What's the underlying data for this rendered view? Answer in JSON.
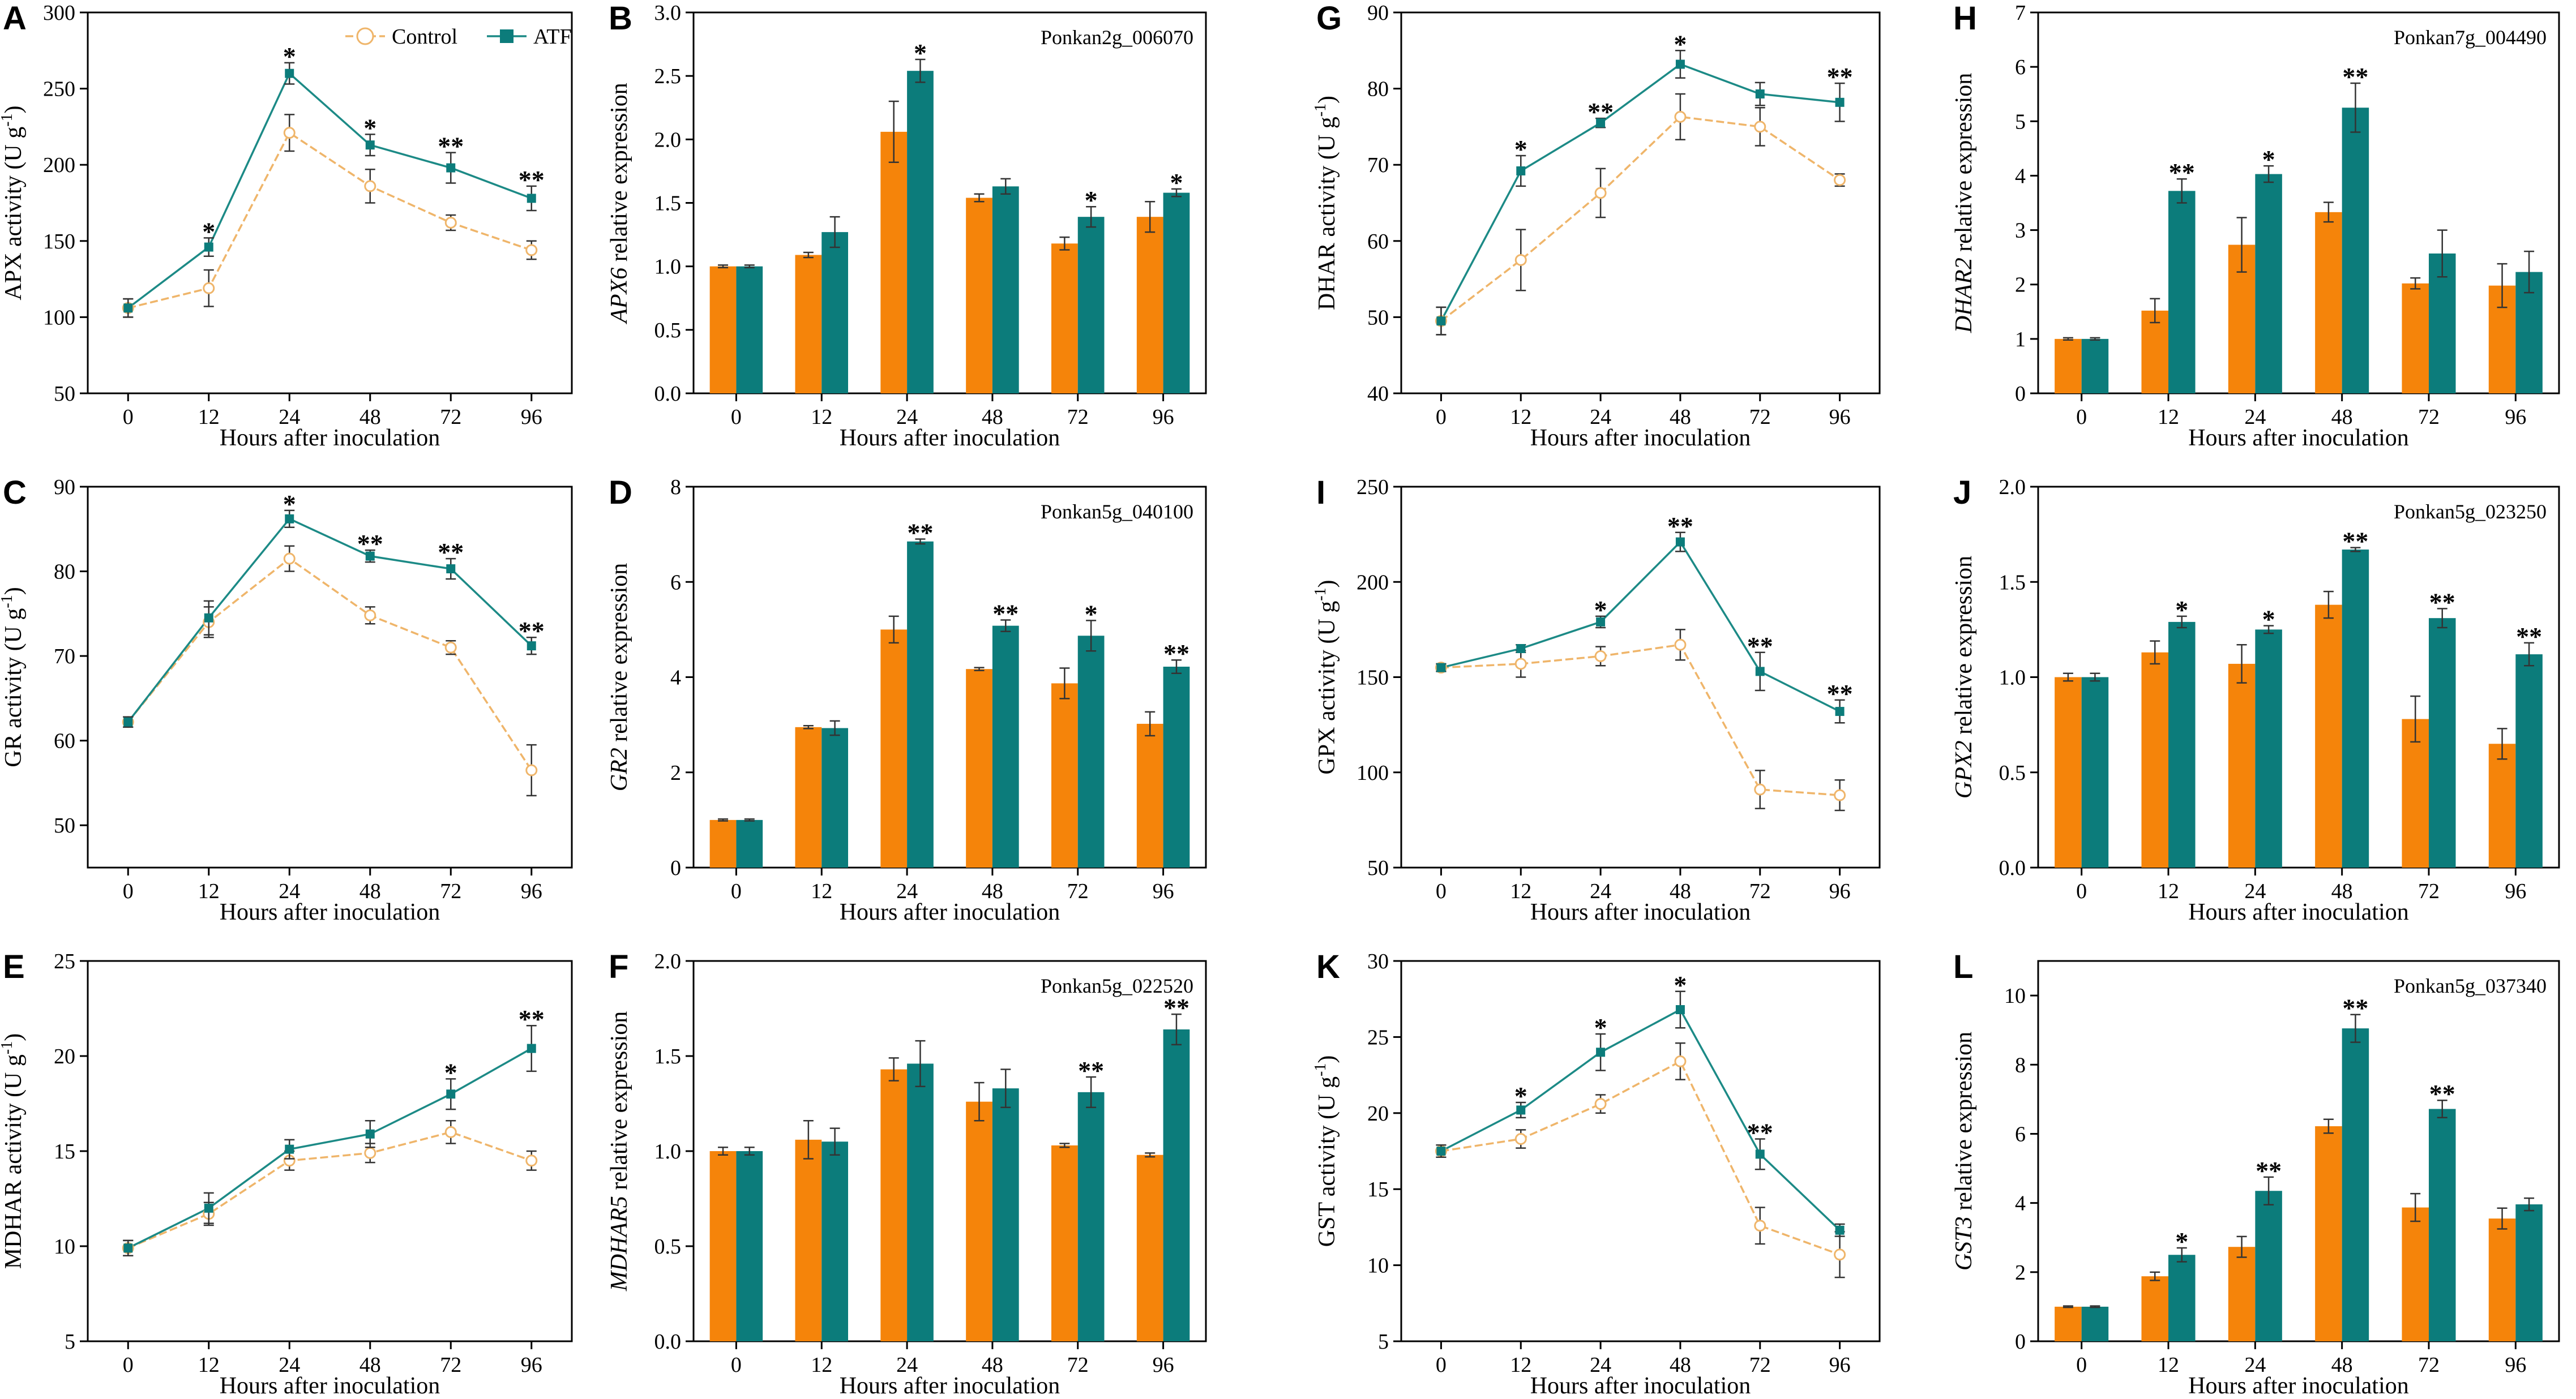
{
  "colors": {
    "control": "#F5840A",
    "atf": "#0C7C7B",
    "control_line": "#EFB56A",
    "atf_line": "#1C8A86",
    "axis": "#000000",
    "error": "#333333"
  },
  "legend": {
    "control": "Control",
    "atf": "ATF"
  },
  "chart_data": [
    {
      "panel": "A",
      "type": "line",
      "title": "",
      "ylabel": "APX activity (U g-1)",
      "ylabel_main": "APX activity (U g",
      "ylabel_sup": "-1",
      "ylabel_close": ")",
      "xlabel": "Hours after inoculation",
      "categories": [
        "0",
        "12",
        "24",
        "48",
        "72",
        "96"
      ],
      "ylim": [
        50,
        300
      ],
      "yticks": [
        "50",
        "100",
        "150",
        "200",
        "250",
        "300"
      ],
      "series": [
        {
          "name": "Control",
          "values": [
            106,
            119,
            221,
            186,
            162,
            144
          ],
          "errors": [
            6,
            12,
            12,
            11,
            5,
            6
          ]
        },
        {
          "name": "ATF",
          "values": [
            106,
            146,
            260,
            213,
            198,
            178
          ],
          "errors": [
            6,
            6,
            7,
            7,
            10,
            8
          ]
        }
      ],
      "significance": [
        "",
        "*",
        "*",
        "*",
        "**",
        "**"
      ],
      "legend": true
    },
    {
      "panel": "B",
      "type": "bar",
      "title": "Ponkan2g_006070",
      "ylabel": "APX6 relative expression",
      "ylabel_gene": "APX6",
      "ylabel_rest": " relative expression",
      "xlabel": "Hours after inoculation",
      "categories": [
        "0",
        "12",
        "24",
        "48",
        "72",
        "96"
      ],
      "ylim": [
        0,
        3.0
      ],
      "yticks": [
        "0.0",
        "0.5",
        "1.0",
        "1.5",
        "2.0",
        "2.5",
        "3.0"
      ],
      "series": [
        {
          "name": "Control",
          "values": [
            1.0,
            1.09,
            2.06,
            1.54,
            1.18,
            1.39
          ],
          "errors": [
            0.01,
            0.02,
            0.24,
            0.03,
            0.05,
            0.12
          ]
        },
        {
          "name": "ATF",
          "values": [
            1.0,
            1.27,
            2.54,
            1.63,
            1.39,
            1.58
          ],
          "errors": [
            0.01,
            0.12,
            0.09,
            0.06,
            0.08,
            0.03
          ]
        }
      ],
      "significance": [
        "",
        "",
        "*",
        "",
        "*",
        "*"
      ]
    },
    {
      "panel": "C",
      "type": "line",
      "title": "",
      "ylabel": "GR activity (U g-1)",
      "ylabel_main": "GR activity (U g",
      "ylabel_sup": "-1",
      "ylabel_close": ")",
      "xlabel": "Hours after inoculation",
      "categories": [
        "0",
        "12",
        "24",
        "48",
        "72",
        "96"
      ],
      "ylim": [
        45,
        90
      ],
      "yticks": [
        "50",
        "60",
        "70",
        "80",
        "90"
      ],
      "series": [
        {
          "name": "Control",
          "values": [
            62.2,
            74.0,
            81.5,
            74.8,
            71.0,
            56.5
          ],
          "errors": [
            0.6,
            1.8,
            1.5,
            1.0,
            0.8,
            3.0
          ]
        },
        {
          "name": "ATF",
          "values": [
            62.2,
            74.5,
            86.2,
            81.8,
            80.3,
            71.2
          ],
          "errors": [
            0.6,
            2.0,
            1.0,
            0.7,
            1.2,
            1.0
          ]
        }
      ],
      "significance": [
        "",
        "",
        "*",
        "**",
        "**",
        "**"
      ]
    },
    {
      "panel": "D",
      "type": "bar",
      "title": "Ponkan5g_040100",
      "ylabel": "GR2 relative expression",
      "ylabel_gene": "GR2",
      "ylabel_rest": " relative expression",
      "xlabel": "Hours after inoculation",
      "categories": [
        "0",
        "12",
        "24",
        "48",
        "72",
        "96"
      ],
      "ylim": [
        0,
        8
      ],
      "yticks": [
        "0",
        "2",
        "4",
        "6",
        "8"
      ],
      "series": [
        {
          "name": "Control",
          "values": [
            1.0,
            2.95,
            5.0,
            4.17,
            3.87,
            3.02
          ],
          "errors": [
            0.02,
            0.03,
            0.28,
            0.03,
            0.32,
            0.25
          ]
        },
        {
          "name": "ATF",
          "values": [
            1.0,
            2.93,
            6.85,
            5.08,
            4.87,
            4.22
          ],
          "errors": [
            0.02,
            0.15,
            0.05,
            0.12,
            0.32,
            0.14
          ]
        }
      ],
      "significance": [
        "",
        "",
        "**",
        "**",
        "*",
        "**"
      ]
    },
    {
      "panel": "E",
      "type": "line",
      "title": "",
      "ylabel": "MDHAR activity (U g-1)",
      "ylabel_main": "MDHAR activity (U g",
      "ylabel_sup": "-1",
      "ylabel_close": ")",
      "xlabel": "Hours after inoculation",
      "categories": [
        "0",
        "12",
        "24",
        "48",
        "72",
        "96"
      ],
      "ylim": [
        5,
        25
      ],
      "yticks": [
        "5",
        "10",
        "15",
        "20",
        "25"
      ],
      "series": [
        {
          "name": "Control",
          "values": [
            9.9,
            11.7,
            14.5,
            14.9,
            16.0,
            14.5
          ],
          "errors": [
            0.4,
            0.6,
            0.5,
            0.5,
            0.6,
            0.5
          ]
        },
        {
          "name": "ATF",
          "values": [
            9.9,
            12.0,
            15.1,
            15.9,
            18.0,
            20.4
          ],
          "errors": [
            0.4,
            0.8,
            0.5,
            0.7,
            0.8,
            1.2
          ]
        }
      ],
      "significance": [
        "",
        "",
        "",
        "",
        "*",
        "**"
      ]
    },
    {
      "panel": "F",
      "type": "bar",
      "title": "Ponkan5g_022520",
      "ylabel": "MDHAR5 relative expression",
      "ylabel_gene": "MDHAR5",
      "ylabel_rest": " relative expression",
      "xlabel": "Hours after inoculation",
      "categories": [
        "0",
        "12",
        "24",
        "48",
        "72",
        "96"
      ],
      "ylim": [
        0,
        2.0
      ],
      "yticks": [
        "0.0",
        "0.5",
        "1.0",
        "1.5",
        "2.0"
      ],
      "series": [
        {
          "name": "Control",
          "values": [
            1.0,
            1.06,
            1.43,
            1.26,
            1.03,
            0.98
          ],
          "errors": [
            0.02,
            0.1,
            0.06,
            0.1,
            0.01,
            0.01
          ]
        },
        {
          "name": "ATF",
          "values": [
            1.0,
            1.05,
            1.46,
            1.33,
            1.31,
            1.64
          ],
          "errors": [
            0.02,
            0.07,
            0.12,
            0.1,
            0.08,
            0.08
          ]
        }
      ],
      "significance": [
        "",
        "",
        "",
        "",
        "**",
        "**"
      ]
    },
    {
      "panel": "G",
      "type": "line",
      "title": "",
      "ylabel": "DHAR activity (U g-1)",
      "ylabel_main": "DHAR activity (U g",
      "ylabel_sup": "-1",
      "ylabel_close": ")",
      "xlabel": "Hours after inoculation",
      "categories": [
        "0",
        "12",
        "24",
        "48",
        "72",
        "96"
      ],
      "ylim": [
        40,
        90
      ],
      "yticks": [
        "40",
        "50",
        "60",
        "70",
        "80",
        "90"
      ],
      "series": [
        {
          "name": "Control",
          "values": [
            49.5,
            57.5,
            66.3,
            76.3,
            75.0,
            68.0
          ],
          "errors": [
            1.8,
            4.0,
            3.2,
            3.0,
            2.5,
            0.8
          ]
        },
        {
          "name": "ATF",
          "values": [
            49.5,
            69.2,
            75.5,
            83.2,
            79.3,
            78.2
          ],
          "errors": [
            1.8,
            2.0,
            0.6,
            1.8,
            1.5,
            2.5
          ]
        }
      ],
      "significance": [
        "",
        "*",
        "**",
        "*",
        "",
        "**"
      ]
    },
    {
      "panel": "H",
      "type": "bar",
      "title": "Ponkan7g_004490",
      "ylabel": "DHAR2 relative expression",
      "ylabel_gene": "DHAR2",
      "ylabel_rest": " relative expression",
      "xlabel": "Hours after inoculation",
      "categories": [
        "0",
        "12",
        "24",
        "48",
        "72",
        "96"
      ],
      "ylim": [
        0,
        7
      ],
      "yticks": [
        "0",
        "1",
        "2",
        "3",
        "4",
        "5",
        "6",
        "7"
      ],
      "series": [
        {
          "name": "Control",
          "values": [
            1.0,
            1.52,
            2.73,
            3.33,
            2.02,
            1.98
          ],
          "errors": [
            0.02,
            0.22,
            0.5,
            0.18,
            0.1,
            0.4
          ]
        },
        {
          "name": "ATF",
          "values": [
            1.0,
            3.72,
            4.03,
            5.25,
            2.57,
            2.23
          ],
          "errors": [
            0.02,
            0.22,
            0.15,
            0.45,
            0.43,
            0.38
          ]
        }
      ],
      "significance": [
        "",
        "**",
        "*",
        "**",
        "",
        ""
      ]
    },
    {
      "panel": "I",
      "type": "line",
      "title": "",
      "ylabel": "GPX activity (U g-1)",
      "ylabel_main": "GPX activity (U g",
      "ylabel_sup": "-1",
      "ylabel_close": ")",
      "xlabel": "Hours after inoculation",
      "categories": [
        "0",
        "12",
        "24",
        "48",
        "72",
        "96"
      ],
      "ylim": [
        50,
        250
      ],
      "yticks": [
        "50",
        "100",
        "150",
        "200",
        "250"
      ],
      "series": [
        {
          "name": "Control",
          "values": [
            155,
            157,
            161,
            167,
            91,
            88
          ],
          "errors": [
            2,
            7,
            5,
            8,
            10,
            8
          ]
        },
        {
          "name": "ATF",
          "values": [
            155,
            165,
            179,
            221,
            153,
            132
          ],
          "errors": [
            2,
            2,
            3,
            5,
            10,
            6
          ]
        }
      ],
      "significance": [
        "",
        "",
        "*",
        "**",
        "**",
        "**"
      ]
    },
    {
      "panel": "J",
      "type": "bar",
      "title": "Ponkan5g_023250",
      "ylabel": "GPX2 relative expression",
      "ylabel_gene": "GPX2",
      "ylabel_rest": " relative expression",
      "xlabel": "Hours after inoculation",
      "categories": [
        "0",
        "12",
        "24",
        "48",
        "72",
        "96"
      ],
      "ylim": [
        0,
        2.0
      ],
      "yticks": [
        "0.0",
        "0.5",
        "1.0",
        "1.5",
        "2.0"
      ],
      "series": [
        {
          "name": "Control",
          "values": [
            1.0,
            1.13,
            1.07,
            1.38,
            0.78,
            0.65
          ],
          "errors": [
            0.02,
            0.06,
            0.1,
            0.07,
            0.12,
            0.08
          ]
        },
        {
          "name": "ATF",
          "values": [
            1.0,
            1.29,
            1.25,
            1.67,
            1.31,
            1.12
          ],
          "errors": [
            0.02,
            0.03,
            0.02,
            0.01,
            0.05,
            0.06
          ]
        }
      ],
      "significance": [
        "",
        "*",
        "*",
        "**",
        "**",
        "**"
      ]
    },
    {
      "panel": "K",
      "type": "line",
      "title": "",
      "ylabel": "GST activity (U g-1)",
      "ylabel_main": "GST activity (U g",
      "ylabel_sup": "-1",
      "ylabel_close": ")",
      "xlabel": "Hours after inoculation",
      "categories": [
        "0",
        "12",
        "24",
        "48",
        "72",
        "96"
      ],
      "ylim": [
        5,
        30
      ],
      "yticks": [
        "5",
        "10",
        "15",
        "20",
        "25",
        "30"
      ],
      "series": [
        {
          "name": "Control",
          "values": [
            17.5,
            18.3,
            20.6,
            23.4,
            12.6,
            10.7
          ],
          "errors": [
            0.4,
            0.6,
            0.6,
            1.2,
            1.2,
            1.5
          ]
        },
        {
          "name": "ATF",
          "values": [
            17.5,
            20.2,
            24.0,
            26.8,
            17.3,
            12.3
          ],
          "errors": [
            0.4,
            0.5,
            1.2,
            1.2,
            1.0,
            0.4
          ]
        }
      ],
      "significance": [
        "",
        "*",
        "*",
        "*",
        "**",
        ""
      ]
    },
    {
      "panel": "L",
      "type": "bar",
      "title": "Ponkan5g_037340",
      "ylabel": "GST3 relative expression",
      "ylabel_gene": "GST3",
      "ylabel_rest": " relative expression",
      "xlabel": "Hours after inoculation",
      "categories": [
        "0",
        "12",
        "24",
        "48",
        "72",
        "96"
      ],
      "ylim": [
        0,
        11
      ],
      "yticks": [
        "0",
        "2",
        "4",
        "6",
        "8",
        "10"
      ],
      "series": [
        {
          "name": "Control",
          "values": [
            1.0,
            1.88,
            2.73,
            6.22,
            3.87,
            3.55
          ],
          "errors": [
            0.02,
            0.12,
            0.3,
            0.2,
            0.4,
            0.3
          ]
        },
        {
          "name": "ATF",
          "values": [
            1.0,
            2.5,
            4.35,
            9.05,
            6.72,
            3.96
          ],
          "errors": [
            0.02,
            0.2,
            0.4,
            0.4,
            0.25,
            0.18
          ]
        }
      ],
      "significance": [
        "",
        "*",
        "**",
        "**",
        "**",
        ""
      ]
    }
  ]
}
